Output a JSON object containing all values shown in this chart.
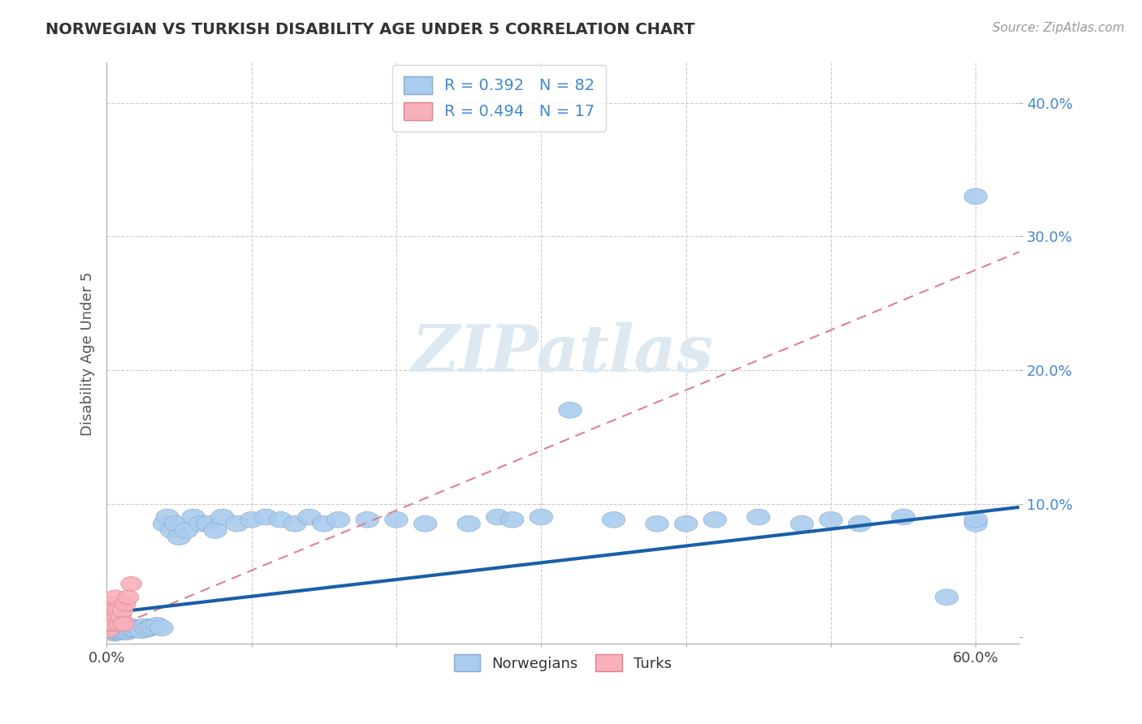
{
  "title": "NORWEGIAN VS TURKISH DISABILITY AGE UNDER 5 CORRELATION CHART",
  "source": "Source: ZipAtlas.com",
  "ylabel": "Disability Age Under 5",
  "xlim": [
    0.0,
    0.63
  ],
  "ylim": [
    -0.005,
    0.43
  ],
  "norwegian_color": "#aaccee",
  "norwegian_edge_color": "#88aacc",
  "norwegian_line_color": "#1a5fa8",
  "turkish_color": "#f8b0bb",
  "turkish_edge_color": "#e08090",
  "turkish_line_color": "#e08090",
  "background_color": "#ffffff",
  "grid_color": "#cccccc",
  "title_color": "#333333",
  "source_color": "#999999",
  "ytick_color": "#4488cc",
  "watermark_color": "#dde8f0",
  "norwegian_R": 0.392,
  "norwegian_N": 82,
  "turkish_R": 0.494,
  "turkish_N": 17,
  "nor_x": [
    0.001,
    0.001,
    0.001,
    0.002,
    0.002,
    0.002,
    0.003,
    0.003,
    0.004,
    0.004,
    0.004,
    0.005,
    0.005,
    0.005,
    0.006,
    0.006,
    0.006,
    0.007,
    0.007,
    0.008,
    0.008,
    0.009,
    0.009,
    0.01,
    0.01,
    0.011,
    0.012,
    0.013,
    0.014,
    0.015,
    0.016,
    0.017,
    0.018,
    0.02,
    0.022,
    0.024,
    0.026,
    0.028,
    0.03,
    0.032,
    0.035,
    0.038,
    0.04,
    0.042,
    0.045,
    0.048,
    0.05,
    0.055,
    0.06,
    0.065,
    0.07,
    0.075,
    0.08,
    0.09,
    0.1,
    0.11,
    0.12,
    0.13,
    0.14,
    0.15,
    0.16,
    0.18,
    0.2,
    0.22,
    0.25,
    0.27,
    0.28,
    0.3,
    0.32,
    0.35,
    0.38,
    0.4,
    0.42,
    0.45,
    0.48,
    0.5,
    0.52,
    0.55,
    0.58,
    0.6,
    0.6,
    0.6
  ],
  "nor_y": [
    0.005,
    0.01,
    0.015,
    0.005,
    0.01,
    0.02,
    0.005,
    0.008,
    0.004,
    0.008,
    0.015,
    0.003,
    0.006,
    0.012,
    0.004,
    0.007,
    0.012,
    0.005,
    0.01,
    0.004,
    0.009,
    0.005,
    0.01,
    0.004,
    0.008,
    0.005,
    0.006,
    0.007,
    0.004,
    0.006,
    0.005,
    0.008,
    0.006,
    0.006,
    0.007,
    0.005,
    0.008,
    0.006,
    0.007,
    0.008,
    0.009,
    0.007,
    0.085,
    0.09,
    0.08,
    0.085,
    0.075,
    0.08,
    0.09,
    0.085,
    0.085,
    0.08,
    0.09,
    0.085,
    0.088,
    0.09,
    0.088,
    0.085,
    0.09,
    0.085,
    0.088,
    0.088,
    0.088,
    0.085,
    0.085,
    0.09,
    0.088,
    0.09,
    0.17,
    0.088,
    0.085,
    0.085,
    0.088,
    0.09,
    0.085,
    0.088,
    0.085,
    0.09,
    0.03,
    0.085,
    0.088,
    0.33
  ],
  "tur_x": [
    0.001,
    0.002,
    0.003,
    0.003,
    0.004,
    0.005,
    0.005,
    0.006,
    0.007,
    0.008,
    0.009,
    0.01,
    0.011,
    0.012,
    0.013,
    0.015,
    0.017
  ],
  "tur_y": [
    0.005,
    0.01,
    0.015,
    0.02,
    0.025,
    0.01,
    0.02,
    0.03,
    0.015,
    0.02,
    0.01,
    0.015,
    0.02,
    0.01,
    0.025,
    0.03,
    0.04
  ]
}
